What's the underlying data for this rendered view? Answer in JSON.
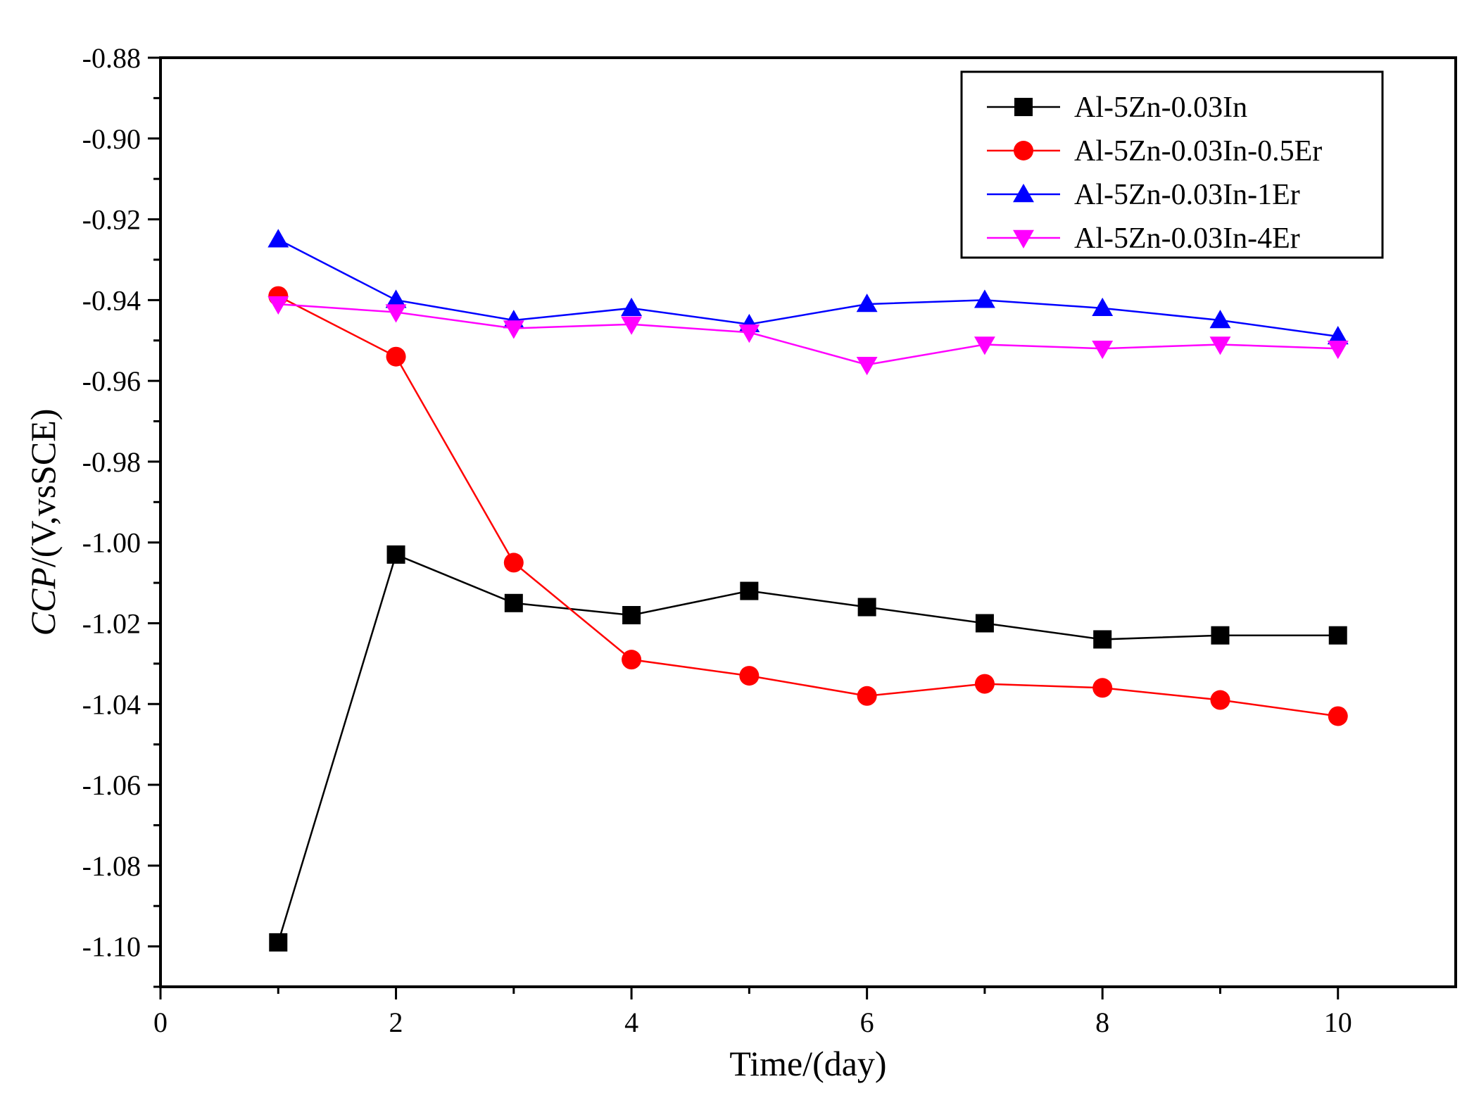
{
  "chart_data": {
    "type": "line",
    "title": "",
    "xlabel": "Time/(day)",
    "ylabel_italic": "CCP",
    "ylabel_rest": "/(V,vsSCE)",
    "xlim": [
      0,
      11
    ],
    "ylim": [
      -1.11,
      -0.88
    ],
    "x_ticks": [
      0,
      2,
      4,
      6,
      8,
      10
    ],
    "x_tick_labels": [
      "0",
      "2",
      "4",
      "6",
      "8",
      "10"
    ],
    "y_ticks": [
      -0.88,
      -0.9,
      -0.92,
      -0.94,
      -0.96,
      -0.98,
      -1.0,
      -1.02,
      -1.04,
      -1.06,
      -1.08,
      -1.1
    ],
    "y_tick_labels": [
      "-0.88",
      "-0.90",
      "-0.92",
      "-0.94",
      "-0.96",
      "-0.98",
      "-1.00",
      "-1.02",
      "-1.04",
      "-1.06",
      "-1.08",
      "-1.10"
    ],
    "grid": false,
    "legend_position": "top-right",
    "x": [
      1,
      2,
      3,
      4,
      5,
      6,
      7,
      8,
      9,
      10
    ],
    "series": [
      {
        "name": "Al-5Zn-0.03In",
        "color": "#000000",
        "marker": "square",
        "values": [
          -1.099,
          -1.003,
          -1.015,
          -1.018,
          -1.012,
          -1.016,
          -1.02,
          -1.024,
          -1.023,
          -1.023
        ]
      },
      {
        "name": "Al-5Zn-0.03In-0.5Er",
        "color": "#ff0000",
        "marker": "circle",
        "values": [
          -0.939,
          -0.954,
          -1.005,
          -1.029,
          -1.033,
          -1.038,
          -1.035,
          -1.036,
          -1.039,
          -1.043
        ]
      },
      {
        "name": "Al-5Zn-0.03In-1Er",
        "color": "#0000ff",
        "marker": "triangle-up",
        "values": [
          -0.925,
          -0.94,
          -0.945,
          -0.942,
          -0.946,
          -0.941,
          -0.94,
          -0.942,
          -0.945,
          -0.949
        ]
      },
      {
        "name": "Al-5Zn-0.03In-4Er",
        "color": "#ff00ff",
        "marker": "triangle-down",
        "values": [
          -0.941,
          -0.943,
          -0.947,
          -0.946,
          -0.948,
          -0.956,
          -0.951,
          -0.952,
          -0.951,
          -0.952
        ]
      }
    ]
  }
}
